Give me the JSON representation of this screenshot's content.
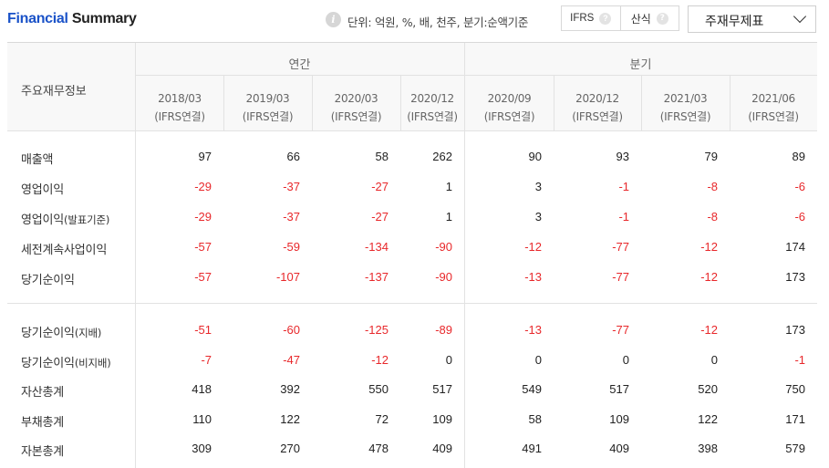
{
  "header": {
    "title_part1": "Financial",
    "title_part2": "Summary",
    "info_icon": "info-icon",
    "unit_text": "단위: 억원, %, 배, 천주, 분기:순액기준",
    "buttons": [
      {
        "label": "IFRS",
        "help_icon": "question-icon"
      },
      {
        "label": "산식",
        "help_icon": "question-icon"
      }
    ],
    "select_value": "주재무제표",
    "select_icon": "chevron-down-icon"
  },
  "table": {
    "label_header": "주요재무정보",
    "groups": [
      "연간",
      "분기"
    ],
    "columns": [
      {
        "period": "2018/03",
        "basis": "(IFRS연결)"
      },
      {
        "period": "2019/03",
        "basis": "(IFRS연결)"
      },
      {
        "period": "2020/03",
        "basis": "(IFRS연결)"
      },
      {
        "period": "2020/12",
        "basis": "(IFRS연결)"
      },
      {
        "period": "2020/09",
        "basis": "(IFRS연결)"
      },
      {
        "period": "2020/12",
        "basis": "(IFRS연결)"
      },
      {
        "period": "2021/03",
        "basis": "(IFRS연결)"
      },
      {
        "period": "2021/06",
        "basis": "(IFRS연결)"
      }
    ],
    "section1": [
      {
        "label": "매출액",
        "sub": "",
        "values": [
          "97",
          "66",
          "58",
          "262",
          "90",
          "93",
          "79",
          "89"
        ]
      },
      {
        "label": "영업이익",
        "sub": "",
        "values": [
          "-29",
          "-37",
          "-27",
          "1",
          "3",
          "-1",
          "-8",
          "-6"
        ]
      },
      {
        "label": "영업이익",
        "sub": "(발표기준)",
        "values": [
          "-29",
          "-37",
          "-27",
          "1",
          "3",
          "-1",
          "-8",
          "-6"
        ]
      },
      {
        "label": "세전계속사업이익",
        "sub": "",
        "values": [
          "-57",
          "-59",
          "-134",
          "-90",
          "-12",
          "-77",
          "-12",
          "174"
        ]
      },
      {
        "label": "당기순이익",
        "sub": "",
        "values": [
          "-57",
          "-107",
          "-137",
          "-90",
          "-13",
          "-77",
          "-12",
          "173"
        ]
      }
    ],
    "section2": [
      {
        "label": "당기순이익",
        "sub": "(지배)",
        "values": [
          "-51",
          "-60",
          "-125",
          "-89",
          "-13",
          "-77",
          "-12",
          "173"
        ]
      },
      {
        "label": "당기순이익",
        "sub": "(비지배)",
        "values": [
          "-7",
          "-47",
          "-12",
          "0",
          "0",
          "0",
          "0",
          "-1"
        ]
      },
      {
        "label": "자산총계",
        "sub": "",
        "values": [
          "418",
          "392",
          "550",
          "517",
          "549",
          "517",
          "520",
          "750"
        ]
      },
      {
        "label": "부채총계",
        "sub": "",
        "values": [
          "110",
          "122",
          "72",
          "109",
          "58",
          "109",
          "122",
          "171"
        ]
      },
      {
        "label": "자본총계",
        "sub": "",
        "values": [
          "309",
          "270",
          "478",
          "409",
          "491",
          "409",
          "398",
          "579"
        ]
      }
    ]
  },
  "colors": {
    "accent": "#1a52c8",
    "negative": "#e8282b",
    "text": "#222222"
  }
}
